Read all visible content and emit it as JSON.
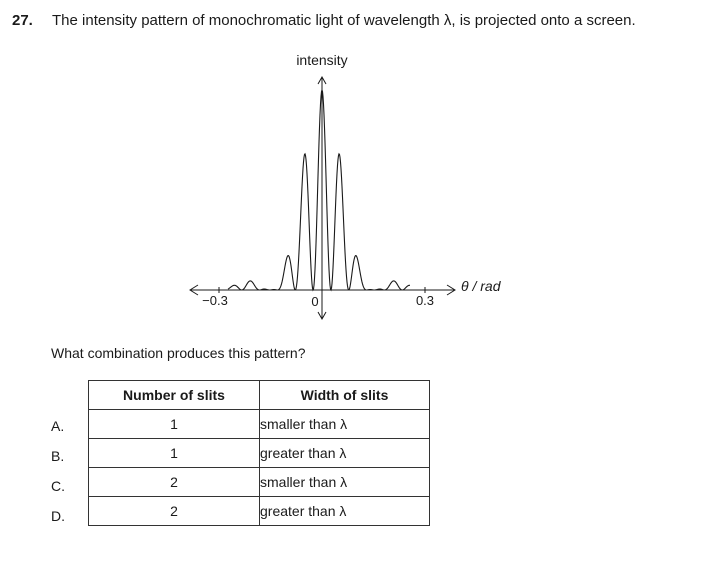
{
  "question": {
    "number": "27.",
    "text": "The intensity pattern of monochromatic light of wavelength λ, is projected onto a screen."
  },
  "figure": {
    "y_axis_label": "intensity",
    "x_axis_label": "θ / rad",
    "tick_labels": [
      "−0.3",
      "0",
      "0.3"
    ]
  },
  "prompt": "What combination produces this pattern?",
  "table": {
    "headers": [
      "Number of slits",
      "Width of slits"
    ],
    "rows": [
      {
        "option": "A.",
        "slits": "1",
        "width": "smaller than λ"
      },
      {
        "option": "B.",
        "slits": "1",
        "width": "greater than λ"
      },
      {
        "option": "C.",
        "slits": "2",
        "width": "smaller than λ"
      },
      {
        "option": "D.",
        "slits": "2",
        "width": "greater than λ"
      }
    ]
  }
}
